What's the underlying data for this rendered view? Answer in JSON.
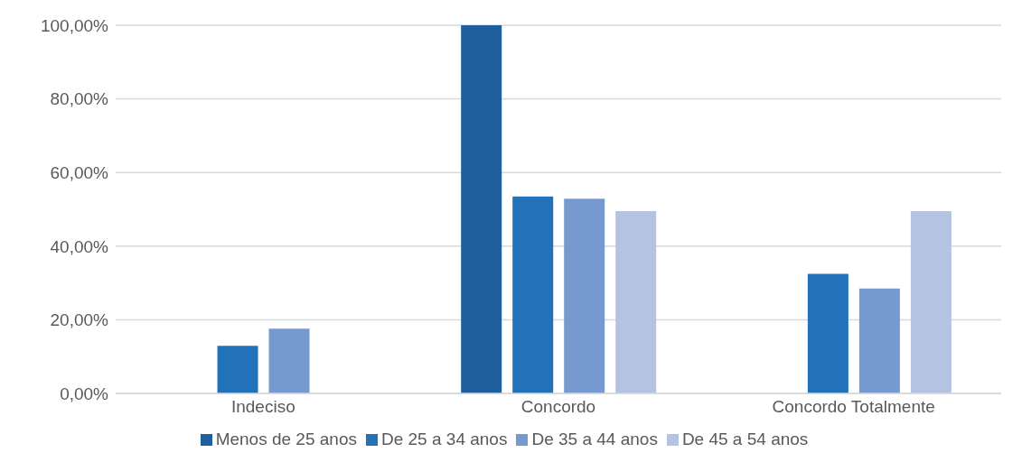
{
  "chart_data": {
    "type": "bar",
    "categories": [
      "Indeciso",
      "Concordo",
      "Concordo Totalmente"
    ],
    "series": [
      {
        "name": "Menos de 25 anos",
        "color": "#1f5f9e",
        "values": [
          null,
          100,
          null
        ]
      },
      {
        "name": "De 25 a 34 anos",
        "color": "#2272b9",
        "values": [
          12.9,
          53.5,
          32.5
        ]
      },
      {
        "name": "De 35 a 44 anos",
        "color": "#7699cf",
        "values": [
          17.6,
          52.9,
          28.5
        ]
      },
      {
        "name": "De 45 a 54 anos",
        "color": "#b4c3e2",
        "values": [
          null,
          49.5,
          49.5
        ]
      }
    ],
    "ylim": [
      0,
      100
    ],
    "yticks": [
      {
        "value": 0,
        "label": "0,00%"
      },
      {
        "value": 20,
        "label": "20,00%"
      },
      {
        "value": 40,
        "label": "40,00%"
      },
      {
        "value": 60,
        "label": "60,00%"
      },
      {
        "value": 80,
        "label": "80,00%"
      },
      {
        "value": 100,
        "label": "100,00%"
      }
    ],
    "grid": "y",
    "legend": "bottom"
  }
}
